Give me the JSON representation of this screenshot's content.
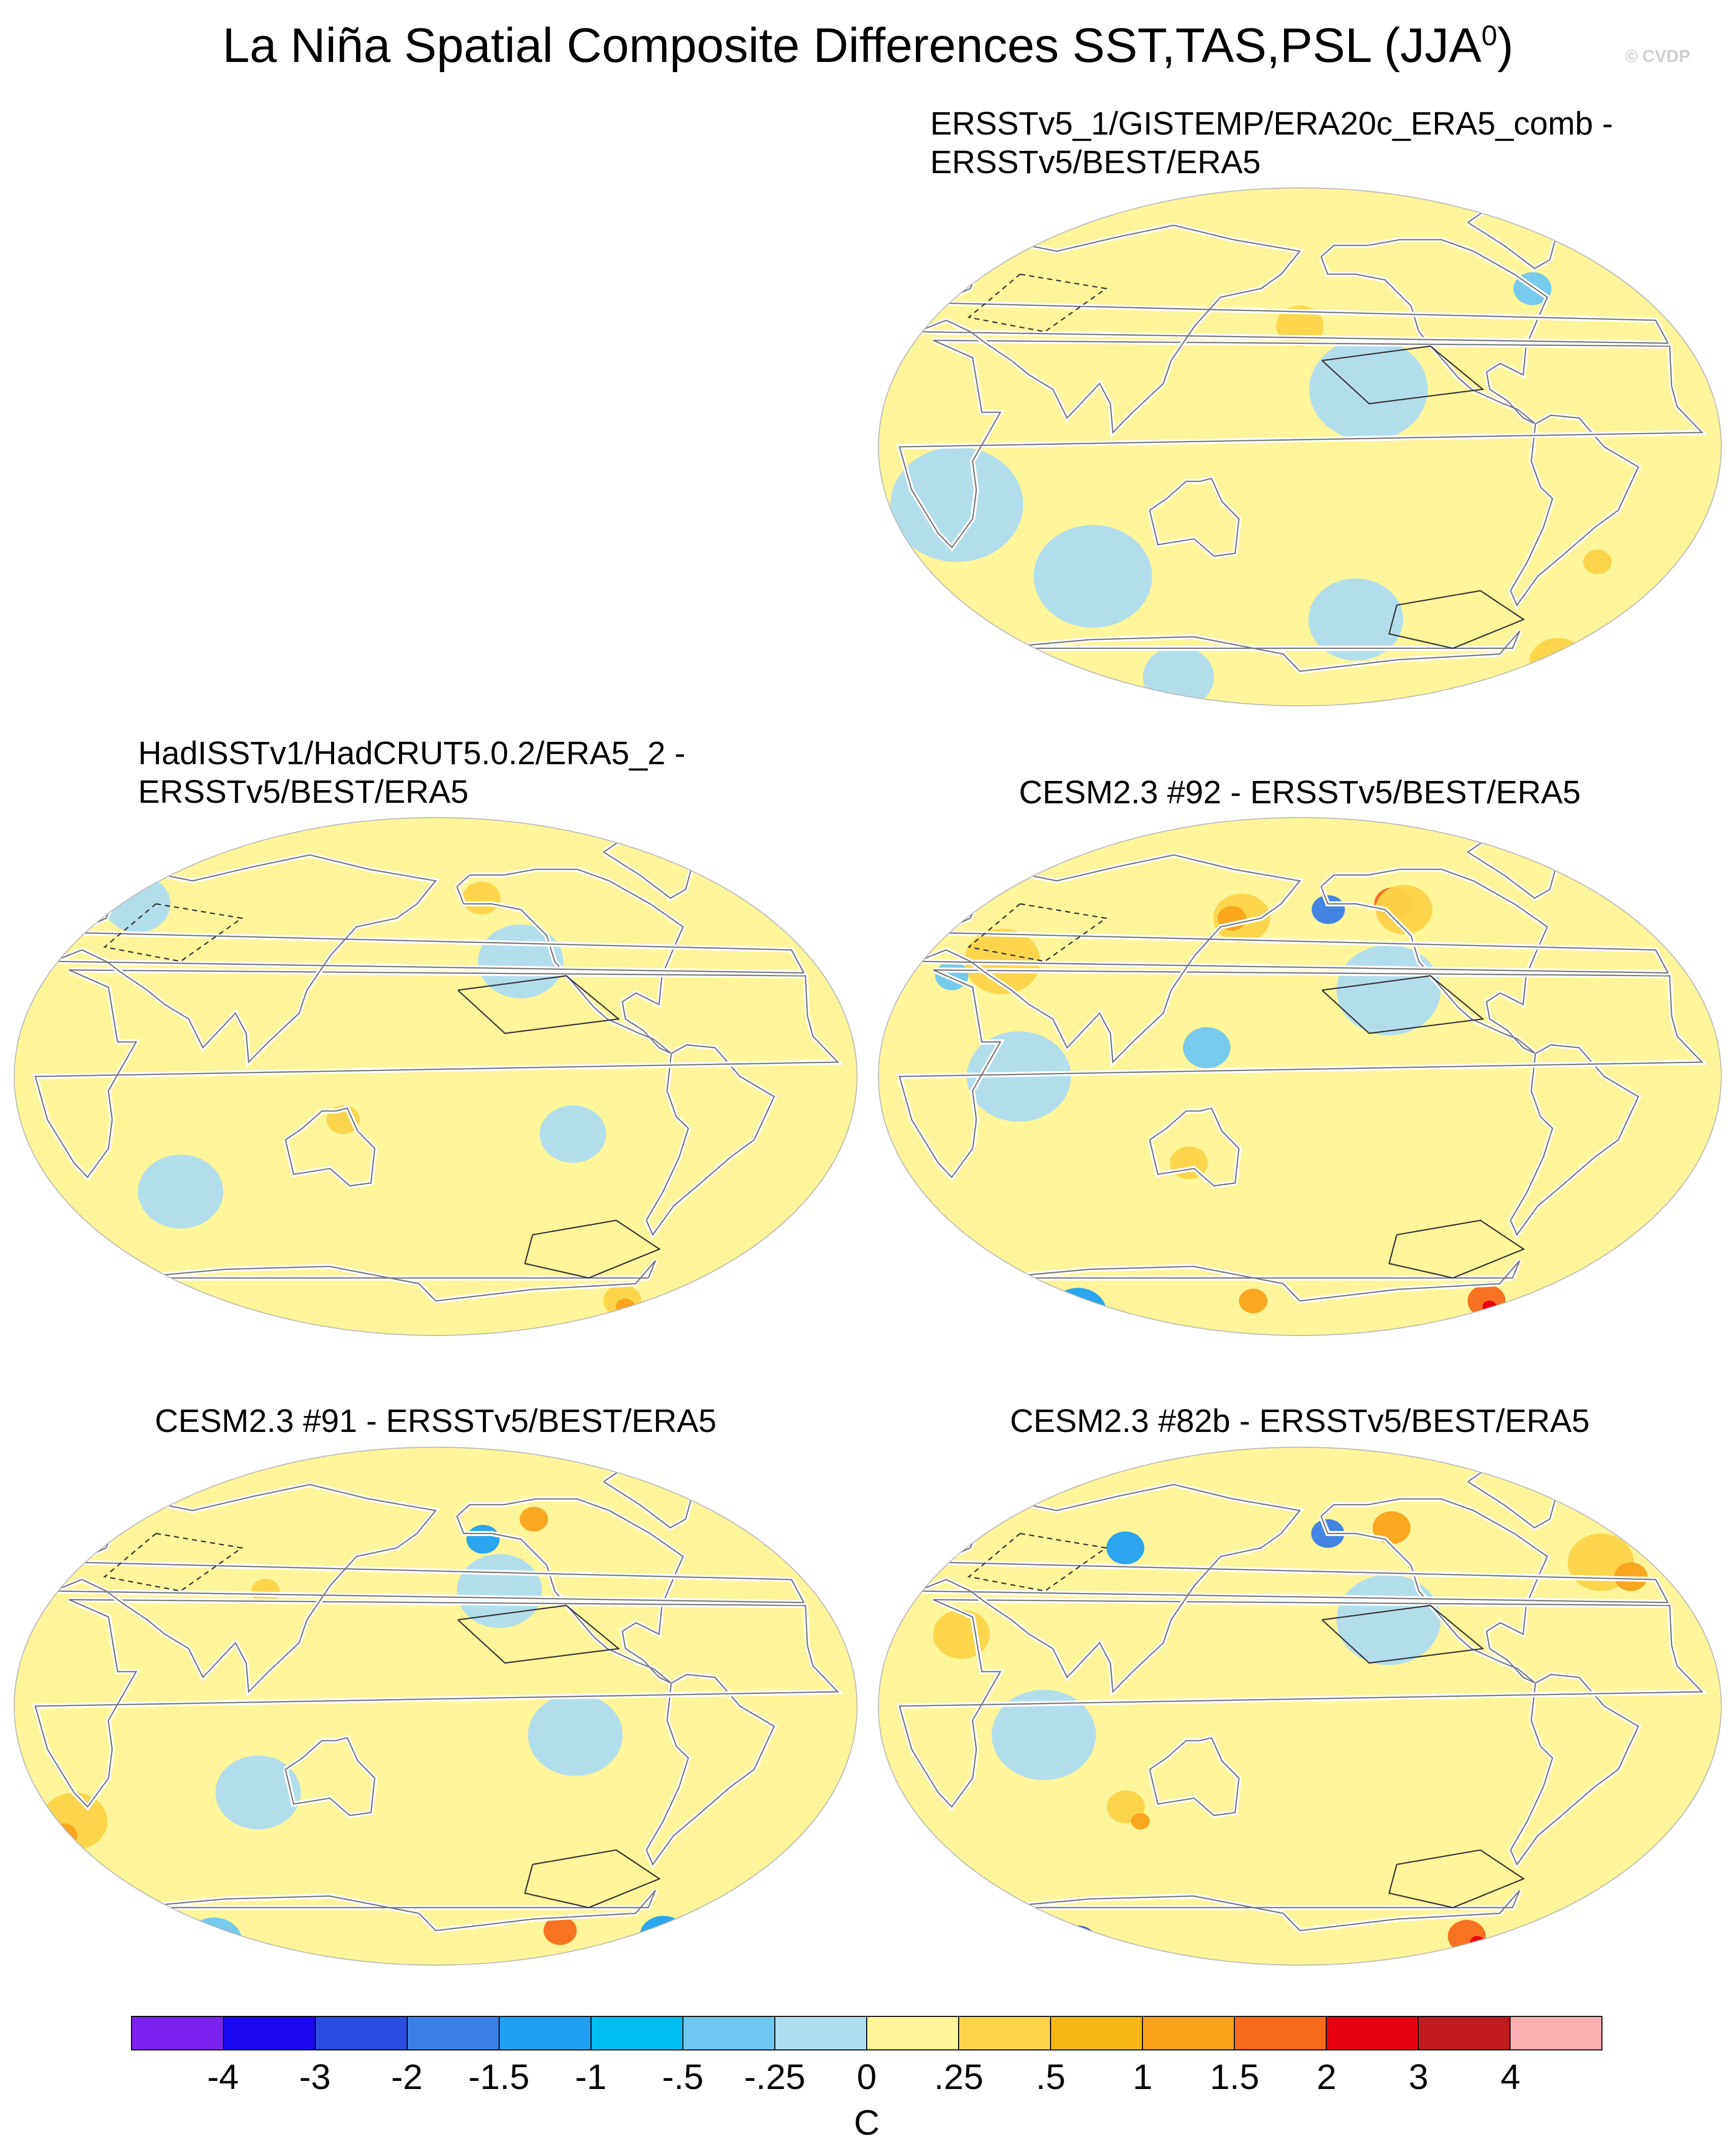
{
  "figure": {
    "title_main": "La Niña Spatial Composite Differences SST,TAS,PSL (JJA",
    "title_sup": "0",
    "title_close": ")",
    "watermark": "© CVDP"
  },
  "panels": [
    {
      "id": "p1",
      "label_line1": "ERSSTv5_1/GISTEMP/ERA20c_ERA5_comb -",
      "label_line2": "ERSSTv5/BEST/ERA5",
      "cells": [
        {
          "col": "#aedcf0",
          "lon": -150,
          "lat": 20,
          "r": 25
        },
        {
          "col": "#fff59a",
          "lon": 120,
          "lat": 30,
          "r": 22
        },
        {
          "col": "#fbd449",
          "lon": 180,
          "lat": 42,
          "r": 10
        },
        {
          "col": "#aedcf0",
          "lon": 30,
          "lat": -20,
          "r": 28
        },
        {
          "col": "#fff59a",
          "lon": -90,
          "lat": -30,
          "r": 24
        },
        {
          "col": "#aedcf0",
          "lon": 80,
          "lat": -45,
          "r": 25
        },
        {
          "col": "#fbd449",
          "lon": -20,
          "lat": -75,
          "r": 12
        },
        {
          "col": "#faa21b",
          "lon": -15,
          "lat": -78,
          "r": 6
        },
        {
          "col": "#aedcf0",
          "lon": 100,
          "lat": -80,
          "r": 15
        },
        {
          "col": "#6fc7f0",
          "lon": -60,
          "lat": 55,
          "r": 8
        },
        {
          "col": "#aedcf0",
          "lon": -150,
          "lat": -60,
          "r": 20
        },
        {
          "col": "#fbd449",
          "lon": -40,
          "lat": -40,
          "r": 6
        },
        {
          "col": "#fff59a",
          "lon": 60,
          "lat": 10,
          "r": 20
        }
      ]
    },
    {
      "id": "p2",
      "label_line1": "HadISSTv1/HadCRUT5.0.2/ERA5_2 -",
      "label_line2": "ERSSTv5/BEST/ERA5",
      "cells": [
        {
          "col": "#fff59a",
          "lon": 0,
          "lat": 0,
          "r": 60
        },
        {
          "col": "#aedcf0",
          "lon": -140,
          "lat": 40,
          "r": 18
        },
        {
          "col": "#fbd449",
          "lon": -155,
          "lat": 62,
          "r": 8
        },
        {
          "col": "#aedcf0",
          "lon": 60,
          "lat": -40,
          "r": 18
        },
        {
          "col": "#aedcf0",
          "lon": -120,
          "lat": -20,
          "r": 14
        },
        {
          "col": "#fbd449",
          "lon": -60,
          "lat": -78,
          "r": 8
        },
        {
          "col": "#faa21b",
          "lon": -55,
          "lat": -80,
          "r": 4
        },
        {
          "col": "#fbd449",
          "lon": 140,
          "lat": -15,
          "r": 7
        },
        {
          "col": "#aedcf0",
          "lon": 20,
          "lat": 60,
          "r": 14
        }
      ]
    },
    {
      "id": "p3",
      "label_line1": "CESM2.3 #92 - ERSSTv5/BEST/ERA5",
      "label_line2": "",
      "cells": [
        {
          "col": "#aedcf0",
          "lon": -140,
          "lat": 30,
          "r": 22
        },
        {
          "col": "#3a7ee8",
          "lon": -165,
          "lat": 58,
          "r": 7
        },
        {
          "col": "#f76b1c",
          "lon": -130,
          "lat": 60,
          "r": 8
        },
        {
          "col": "#fbd449",
          "lon": -125,
          "lat": 58,
          "r": 12
        },
        {
          "col": "#fbd449",
          "lon": 40,
          "lat": 40,
          "r": 16
        },
        {
          "col": "#6fc7f0",
          "lon": 20,
          "lat": 35,
          "r": 7
        },
        {
          "col": "#fbd449",
          "lon": 150,
          "lat": 55,
          "r": 12
        },
        {
          "col": "#faa21b",
          "lon": 145,
          "lat": 55,
          "r": 6
        },
        {
          "col": "#aedcf0",
          "lon": 60,
          "lat": 0,
          "r": 22
        },
        {
          "col": "#fff59a",
          "lon": -60,
          "lat": -40,
          "r": 22
        },
        {
          "col": "#f76b1c",
          "lon": -60,
          "lat": -78,
          "r": 8
        },
        {
          "col": "#e7000f",
          "lon": -55,
          "lat": -80,
          "r": 3
        },
        {
          "col": "#1fa0f2",
          "lon": 30,
          "lat": -82,
          "r": 12
        },
        {
          "col": "#faa21b",
          "lon": 150,
          "lat": -78,
          "r": 6
        },
        {
          "col": "#fbd449",
          "lon": 130,
          "lat": -30,
          "r": 8
        },
        {
          "col": "#6fc7f0",
          "lon": 140,
          "lat": 10,
          "r": 10
        }
      ]
    },
    {
      "id": "p4",
      "label_line1": "CESM2.3 #91 - ERSSTv5/BEST/ERA5",
      "label_line2": "",
      "cells": [
        {
          "col": "#aedcf0",
          "lon": -150,
          "lat": 40,
          "r": 18
        },
        {
          "col": "#1fa0f2",
          "lon": -155,
          "lat": 58,
          "r": 7
        },
        {
          "col": "#faa21b",
          "lon": -125,
          "lat": 65,
          "r": 6
        },
        {
          "col": "#fff59a",
          "lon": 30,
          "lat": 0,
          "r": 30
        },
        {
          "col": "#fbd449",
          "lon": 10,
          "lat": -40,
          "r": 14
        },
        {
          "col": "#faa21b",
          "lon": 0,
          "lat": -45,
          "r": 6
        },
        {
          "col": "#f76b1c",
          "lon": -100,
          "lat": -78,
          "r": 7
        },
        {
          "col": "#1fa0f2",
          "lon": -30,
          "lat": -80,
          "r": 10
        },
        {
          "col": "#6fc7f0",
          "lon": 30,
          "lat": -82,
          "r": 12
        },
        {
          "col": "#aedcf0",
          "lon": -120,
          "lat": -10,
          "r": 20
        },
        {
          "col": "#fbd449",
          "lon": 100,
          "lat": 40,
          "r": 6
        },
        {
          "col": "#aedcf0",
          "lon": 100,
          "lat": -30,
          "r": 18
        }
      ]
    },
    {
      "id": "p5",
      "label_line1": "CESM2.3 #82b - ERSSTv5/BEST/ERA5",
      "label_line2": "",
      "cells": [
        {
          "col": "#aedcf0",
          "lon": -140,
          "lat": 30,
          "r": 22
        },
        {
          "col": "#3a7ee8",
          "lon": -165,
          "lat": 60,
          "r": 7
        },
        {
          "col": "#faa21b",
          "lon": -130,
          "lat": 62,
          "r": 8
        },
        {
          "col": "#fbd449",
          "lon": -30,
          "lat": 50,
          "r": 14
        },
        {
          "col": "#faa21b",
          "lon": -20,
          "lat": 45,
          "r": 7
        },
        {
          "col": "#fbd449",
          "lon": 30,
          "lat": 25,
          "r": 12
        },
        {
          "col": "#1fa0f2",
          "lon": 90,
          "lat": 55,
          "r": 8
        },
        {
          "col": "#aedcf0",
          "lon": 70,
          "lat": -10,
          "r": 22
        },
        {
          "col": "#fbd449",
          "lon": 100,
          "lat": -35,
          "r": 8
        },
        {
          "col": "#faa21b",
          "lon": 105,
          "lat": -40,
          "r": 4
        },
        {
          "col": "#f76b1c",
          "lon": -70,
          "lat": -80,
          "r": 8
        },
        {
          "col": "#e7000f",
          "lon": -60,
          "lat": -82,
          "r": 3
        },
        {
          "col": "#2a4ce0",
          "lon": 30,
          "lat": -82,
          "r": 8
        },
        {
          "col": "#fff59a",
          "lon": -40,
          "lat": -30,
          "r": 20
        }
      ]
    }
  ],
  "colorbar": {
    "colors": [
      "#7b22ee",
      "#1a08f3",
      "#2a4ce0",
      "#3a7ee8",
      "#1fa0f2",
      "#00bdf2",
      "#6fc7f0",
      "#aedcf0",
      "#fff59a",
      "#fbd449",
      "#f7b614",
      "#faa21b",
      "#f76b1c",
      "#e7000f",
      "#c21b1f",
      "#f9aeb2"
    ],
    "ticks": [
      "-4",
      "-3",
      "-2",
      "-1.5",
      "-1",
      "-.5",
      "-.25",
      "0",
      ".25",
      ".5",
      "1",
      "1.5",
      "2",
      "3",
      "4"
    ],
    "unit": "C"
  }
}
